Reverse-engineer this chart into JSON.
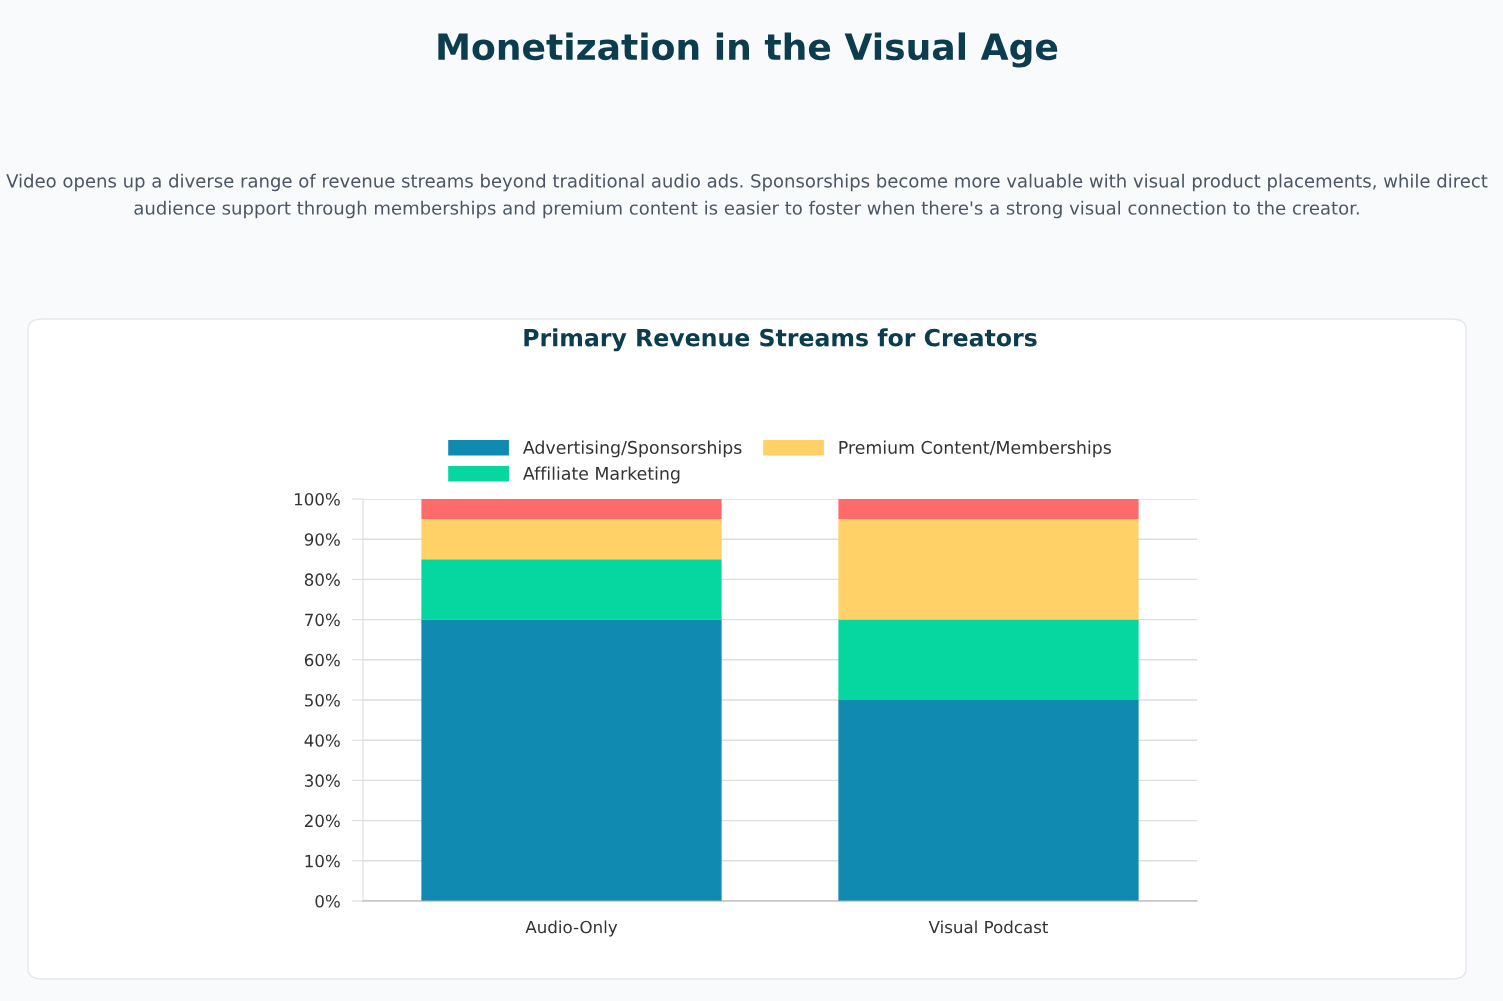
{
  "chart_data": {
    "type": "bar",
    "title": "Primary Revenue Streams for Creators",
    "annotations": [
      "Monetization in the Visual Age",
      "Video opens up a diverse range of revenue streams beyond traditional audio ads. Sponsorships become more valuable with visual product placements, while direct audience support through memberships and premium content is easier to foster when there's a strong visual connection to the creator."
    ],
    "categories": [
      "Audio-Only",
      "Visual Podcast"
    ],
    "stacked": true,
    "series": [
      {
        "name": "Advertising/Sponsorships",
        "color": "#118ab2",
        "values": [
          70,
          50
        ]
      },
      {
        "name": "Affiliate Marketing",
        "color": "#06d6a0",
        "values": [
          15,
          20
        ]
      },
      {
        "name": "Premium Content/Memberships",
        "color": "#ffd166",
        "values": [
          10,
          25
        ]
      },
      {
        "color": "#ff6b6b",
        "values": [
          5,
          5
        ]
      }
    ],
    "ylim": [
      0,
      100
    ],
    "yticks": [
      {
        "value": 0,
        "label": "0%"
      },
      {
        "value": 10,
        "label": "10%"
      },
      {
        "value": 20,
        "label": "20%"
      },
      {
        "value": 30,
        "label": "30%"
      },
      {
        "value": 40,
        "label": "40%"
      },
      {
        "value": 50,
        "label": "50%"
      },
      {
        "value": 60,
        "label": "60%"
      },
      {
        "value": 70,
        "label": "70%"
      },
      {
        "value": 80,
        "label": "80%"
      },
      {
        "value": 90,
        "label": "90%"
      },
      {
        "value": 100,
        "label": "100%"
      }
    ],
    "grid": "y",
    "legend": "top"
  }
}
